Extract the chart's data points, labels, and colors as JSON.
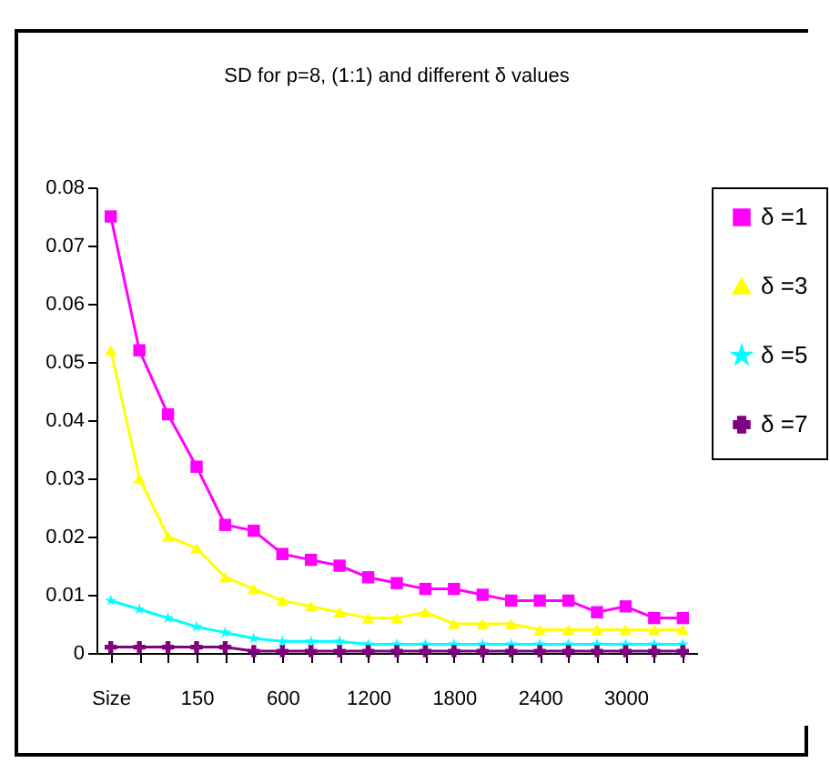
{
  "chart_data": {
    "type": "line",
    "title": "SD for p=8, (1:1) and different δ values",
    "categories": [
      "Size",
      null,
      null,
      "150",
      null,
      null,
      "600",
      null,
      null,
      "1200",
      null,
      null,
      "1800",
      null,
      null,
      "2400",
      null,
      null,
      "3000",
      null,
      null
    ],
    "series": [
      {
        "name": "δ =1",
        "color": "#ff00ff",
        "marker": "square",
        "values": [
          0.075,
          0.052,
          0.041,
          0.032,
          0.022,
          0.021,
          0.017,
          0.016,
          0.015,
          0.013,
          0.012,
          0.011,
          0.011,
          0.01,
          0.009,
          0.009,
          0.009,
          0.007,
          0.008,
          0.006,
          0.006
        ]
      },
      {
        "name": "δ =3",
        "color": "#ffff00",
        "marker": "triangle",
        "values": [
          0.052,
          0.03,
          0.02,
          0.018,
          0.013,
          0.011,
          0.009,
          0.008,
          0.007,
          0.006,
          0.006,
          0.007,
          0.005,
          0.005,
          0.005,
          0.004,
          0.004,
          0.004,
          0.004,
          0.004,
          0.004
        ]
      },
      {
        "name": "δ =5",
        "color": "#00ffff",
        "marker": "star",
        "values": [
          0.009,
          0.0075,
          0.006,
          0.0045,
          0.0035,
          0.0025,
          0.002,
          0.002,
          0.002,
          0.0015,
          0.0015,
          0.0015,
          0.0015,
          0.0015,
          0.0015,
          0.0015,
          0.0015,
          0.0015,
          0.0015,
          0.0015,
          0.0015
        ]
      },
      {
        "name": "δ =7",
        "color": "#800080",
        "marker": "cross",
        "values": [
          0.001,
          0.001,
          0.001,
          0.001,
          0.001,
          0.0003,
          0.0003,
          0.0003,
          0.0003,
          0.0003,
          0.0003,
          0.0003,
          0.0003,
          0.0003,
          0.0003,
          0.0003,
          0.0003,
          0.0003,
          0.0003,
          0.0003,
          0.0003
        ]
      }
    ],
    "ylim": [
      0,
      0.08
    ],
    "yticks": [
      0,
      0.01,
      0.02,
      0.03,
      0.04,
      0.05,
      0.06,
      0.07,
      0.08
    ],
    "grid": false,
    "legend": "right"
  }
}
